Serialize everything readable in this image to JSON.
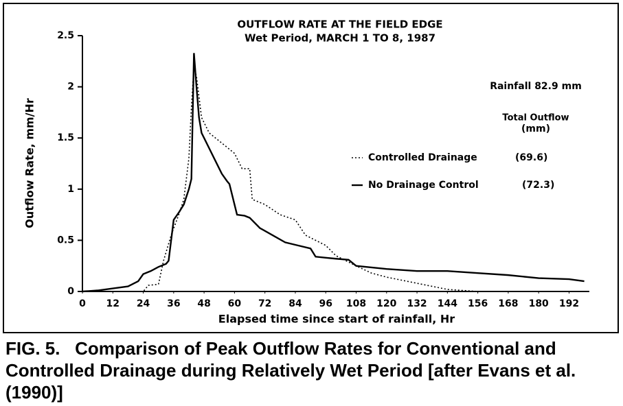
{
  "chart_data": {
    "type": "line",
    "title": "OUTFLOW RATE AT THE FIELD EDGE",
    "subtitle": "Wet Period, MARCH 1 TO 8, 1987",
    "x_label": "Elapsed time since start of rainfall, Hr",
    "y_label": "Outflow Rate, mm/Hr",
    "annotations": [
      "Rainfall  82.9 mm",
      "Total Outflow",
      "(mm)"
    ],
    "caption": "FIG. 5.   Comparison of Peak Outflow Rates for Conventional and Controlled Drainage during Relatively Wet Period [after Evans et al. (1990)]",
    "xlim": [
      0,
      200
    ],
    "xticks": [
      0,
      12,
      24,
      36,
      48,
      60,
      72,
      84,
      96,
      108,
      120,
      132,
      144,
      156,
      168,
      180,
      192
    ],
    "ylim": [
      0,
      2.5
    ],
    "yticks": [
      0,
      0.5,
      1,
      1.5,
      2,
      2.5
    ],
    "series": [
      {
        "name": "Controlled Drainage",
        "total_label": "(69.6)",
        "color": "#000",
        "dash": "dotted",
        "x": [
          0,
          24,
          26,
          30,
          32,
          35,
          38,
          40,
          42,
          43,
          44,
          45,
          47,
          50,
          55,
          60,
          63,
          66,
          67,
          72,
          78,
          84,
          88,
          96,
          100,
          104,
          108,
          114,
          120,
          132,
          140,
          144,
          156,
          170,
          198
        ],
        "values": [
          0,
          0,
          0.06,
          0.07,
          0.3,
          0.55,
          0.75,
          0.9,
          1.3,
          1.8,
          2.2,
          2.1,
          1.7,
          1.55,
          1.45,
          1.35,
          1.2,
          1.2,
          0.9,
          0.85,
          0.75,
          0.7,
          0.55,
          0.45,
          0.35,
          0.3,
          0.25,
          0.18,
          0.14,
          0.08,
          0.04,
          0.02,
          0,
          0,
          0
        ]
      },
      {
        "name": "No Drainage Control",
        "total_label": "(72.3)",
        "color": "#000",
        "dash": "solid",
        "x": [
          0,
          6,
          12,
          18,
          22,
          24,
          27,
          30,
          33,
          34,
          36,
          38,
          40,
          42,
          43,
          44,
          45,
          46,
          47,
          48,
          50,
          52,
          55,
          57,
          58,
          60,
          61,
          64,
          66,
          70,
          75,
          80,
          85,
          90,
          92,
          96,
          100,
          105,
          108,
          112,
          120,
          132,
          144,
          156,
          168,
          180,
          192,
          198
        ],
        "values": [
          0,
          0.01,
          0.03,
          0.05,
          0.1,
          0.17,
          0.2,
          0.24,
          0.27,
          0.3,
          0.7,
          0.77,
          0.85,
          1.0,
          1.1,
          2.33,
          2.0,
          1.7,
          1.55,
          1.5,
          1.4,
          1.3,
          1.15,
          1.08,
          1.05,
          0.85,
          0.75,
          0.74,
          0.72,
          0.62,
          0.55,
          0.48,
          0.45,
          0.42,
          0.34,
          0.33,
          0.32,
          0.31,
          0.25,
          0.24,
          0.22,
          0.2,
          0.2,
          0.18,
          0.16,
          0.13,
          0.12,
          0.1
        ]
      }
    ]
  }
}
